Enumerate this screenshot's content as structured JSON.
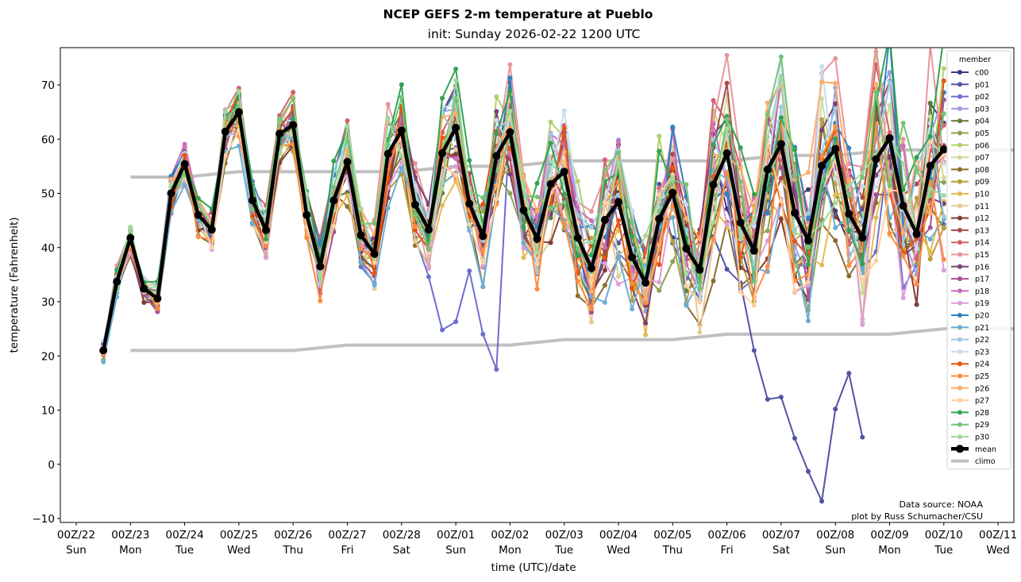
{
  "chart_data": {
    "type": "line",
    "title": "NCEP GEFS 2-m temperature at Pueblo",
    "subtitle": "init: Sunday 2026-02-22 1200 UTC",
    "xlabel": "time (UTC)/date",
    "ylabel": "temperature (Fahrenheit)",
    "ylim": [
      -10.5,
      77
    ],
    "yticks": [
      -10,
      0,
      10,
      20,
      30,
      40,
      50,
      60,
      70
    ],
    "x_unit": "hours since 00Z/22",
    "xlim_hours": [
      -36,
      456
    ],
    "xticks": [
      {
        "hour": 0,
        "top": "00Z/22",
        "bottom": "Sun"
      },
      {
        "hour": 24,
        "top": "00Z/23",
        "bottom": "Mon"
      },
      {
        "hour": 48,
        "top": "00Z/24",
        "bottom": "Tue"
      },
      {
        "hour": 72,
        "top": "00Z/25",
        "bottom": "Wed"
      },
      {
        "hour": 96,
        "top": "00Z/26",
        "bottom": "Thu"
      },
      {
        "hour": 120,
        "top": "00Z/27",
        "bottom": "Fri"
      },
      {
        "hour": 144,
        "top": "00Z/28",
        "bottom": "Sat"
      },
      {
        "hour": 168,
        "top": "00Z/01",
        "bottom": "Sun"
      },
      {
        "hour": 192,
        "top": "00Z/02",
        "bottom": "Mon"
      },
      {
        "hour": 216,
        "top": "00Z/03",
        "bottom": "Tue"
      },
      {
        "hour": 240,
        "top": "00Z/04",
        "bottom": "Wed"
      },
      {
        "hour": 264,
        "top": "00Z/05",
        "bottom": "Thu"
      },
      {
        "hour": 288,
        "top": "00Z/06",
        "bottom": "Fri"
      },
      {
        "hour": 312,
        "top": "00Z/07",
        "bottom": "Sat"
      },
      {
        "hour": 336,
        "top": "00Z/08",
        "bottom": "Sun"
      },
      {
        "hour": 360,
        "top": "00Z/09",
        "bottom": "Mon"
      },
      {
        "hour": 384,
        "top": "00Z/10",
        "bottom": "Tue"
      },
      {
        "hour": 408,
        "top": "00Z/11",
        "bottom": "Wed"
      }
    ],
    "x_start_hour": 12,
    "x_step_hours": 6,
    "legend": {
      "title": "member",
      "position": "top-right"
    },
    "mean": {
      "name": "mean",
      "color": "#000000",
      "values": [
        21,
        33.7,
        41.8,
        32.4,
        30.6,
        50,
        55.4,
        46,
        43.3,
        61.4,
        65,
        48.7,
        43.2,
        61,
        62.6,
        46,
        36.5,
        48.7,
        55.8,
        42.3,
        38.8,
        57.3,
        61.6,
        47.9,
        43.3,
        57.4,
        62.1,
        48.1,
        42.1,
        56.9,
        61.3,
        46.9,
        41.6,
        51.7,
        54,
        41.8,
        36.2,
        45.1,
        48.4,
        38.2,
        33.5,
        45.3,
        50.1,
        39.8,
        35.9,
        51.6,
        57.4,
        44.6,
        39.4,
        54.4,
        59.1,
        46.4,
        41.3,
        55.1,
        58.2,
        46.2,
        41.8,
        56.3,
        60.2,
        47.7,
        42.5,
        55.1,
        58.1
      ]
    },
    "climo": {
      "name": "climo",
      "color": "#c0c0c0",
      "start_hour": 24,
      "step_hours": 24,
      "high": [
        53,
        53,
        54,
        54,
        54,
        54,
        55,
        55,
        56,
        56,
        56,
        56,
        57,
        57,
        58,
        58,
        58,
        58,
        59
      ],
      "low": [
        21,
        21,
        21,
        21,
        22,
        22,
        22,
        22,
        23,
        23,
        23,
        24,
        24,
        24,
        24,
        25,
        25,
        25,
        25
      ]
    },
    "members": [
      {
        "name": "c00",
        "color": "#393b79",
        "offset": 0.3
      },
      {
        "name": "p01",
        "color": "#5254a3",
        "offset": -0.5,
        "special": "cold"
      },
      {
        "name": "p02",
        "color": "#6b6ecf",
        "offset": -0.8,
        "special": "cold2"
      },
      {
        "name": "p03",
        "color": "#9c9ede",
        "offset": 0.6
      },
      {
        "name": "p04",
        "color": "#637939",
        "offset": -0.4
      },
      {
        "name": "p05",
        "color": "#8ca252",
        "offset": -0.9
      },
      {
        "name": "p06",
        "color": "#b5cf6b",
        "offset": 1.1
      },
      {
        "name": "p07",
        "color": "#cedb9c",
        "offset": -0.2
      },
      {
        "name": "p08",
        "color": "#8c6d31",
        "offset": -1.6
      },
      {
        "name": "p09",
        "color": "#bd9e39",
        "offset": -0.7
      },
      {
        "name": "p10",
        "color": "#e7ba52",
        "offset": -1.0
      },
      {
        "name": "p11",
        "color": "#e7cb94",
        "offset": -1.2
      },
      {
        "name": "p12",
        "color": "#843c39",
        "offset": -0.9
      },
      {
        "name": "p13",
        "color": "#ad494a",
        "offset": 0.4
      },
      {
        "name": "p14",
        "color": "#d6616b",
        "offset": 0.9
      },
      {
        "name": "p15",
        "color": "#e7969c",
        "offset": 1.4
      },
      {
        "name": "p16",
        "color": "#7b4173",
        "offset": 0.2
      },
      {
        "name": "p17",
        "color": "#a55194",
        "offset": -0.6
      },
      {
        "name": "p18",
        "color": "#ce6dbd",
        "offset": 0.5
      },
      {
        "name": "p19",
        "color": "#de9ed6",
        "offset": -1.3
      },
      {
        "name": "p20",
        "color": "#3182bd",
        "offset": 0.8
      },
      {
        "name": "p21",
        "color": "#6baed6",
        "offset": -1.5
      },
      {
        "name": "p22",
        "color": "#9ecae1",
        "offset": 0.1
      },
      {
        "name": "p23",
        "color": "#c6dbef",
        "offset": 1.0
      },
      {
        "name": "p24",
        "color": "#e6550d",
        "offset": 0.0
      },
      {
        "name": "p25",
        "color": "#fd8d3c",
        "offset": -1.4
      },
      {
        "name": "p26",
        "color": "#fdae6b",
        "offset": 0.7
      },
      {
        "name": "p27",
        "color": "#fdd0a2",
        "offset": -1.1
      },
      {
        "name": "p28",
        "color": "#31a354",
        "offset": 1.3
      },
      {
        "name": "p29",
        "color": "#74c476",
        "offset": 0.9
      },
      {
        "name": "p30",
        "color": "#a1d99b",
        "offset": 0.5
      }
    ],
    "special_series": {
      "p01_tail": {
        "from_index": 46,
        "values": [
          36,
          33.5,
          21,
          12,
          12.4,
          4.8,
          -1.3,
          -6.8,
          10.2,
          16.8,
          5
        ]
      },
      "p02_lows": {
        "indices": [
          24,
          25,
          26,
          27,
          28,
          29
        ],
        "values": [
          34.6,
          24.8,
          26.3,
          35.7,
          24,
          17.5
        ]
      }
    },
    "annotations": [
      "Data source: NOAA",
      "plot by Russ Schumacher/CSU"
    ]
  }
}
